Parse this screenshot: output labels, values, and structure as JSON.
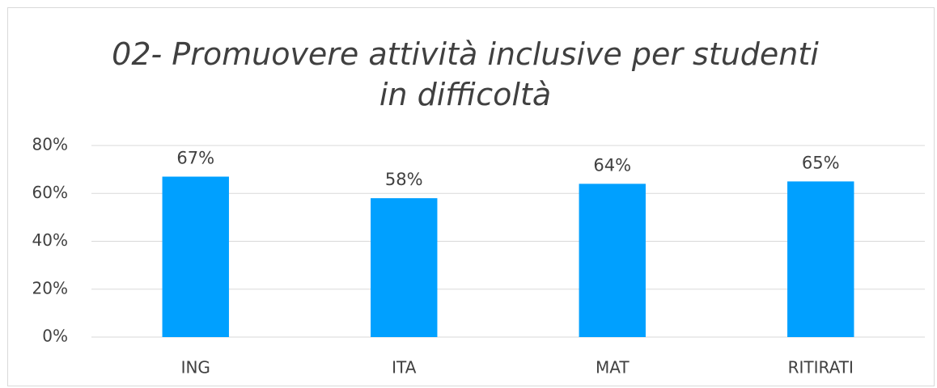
{
  "chart_data": {
    "type": "bar",
    "title": "02- Promuovere attività inclusive per studenti in difficoltà",
    "categories": [
      "ING",
      "ITA",
      "MAT",
      "RITIRATI"
    ],
    "values": [
      67,
      58,
      64,
      65
    ],
    "value_labels": [
      "67%",
      "58%",
      "64%",
      "65%"
    ],
    "color": "#00a0ff",
    "ylim": [
      0,
      80
    ],
    "yticks": [
      {
        "value": 0,
        "label": "0%"
      },
      {
        "value": 20,
        "label": "20%"
      },
      {
        "value": 40,
        "label": "40%"
      },
      {
        "value": 60,
        "label": "60%"
      },
      {
        "value": 80,
        "label": "80%"
      }
    ],
    "grid": true
  }
}
